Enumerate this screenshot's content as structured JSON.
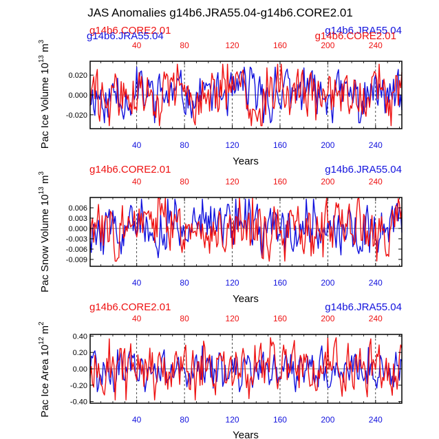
{
  "figure_title": "JAS Anomalies g14b6.JRA55.04-g14b6.CORE2.01",
  "colors": {
    "red_series": "#ee1111",
    "blue_series": "#1111dd",
    "axis": "#000000"
  },
  "chart_data": [
    {
      "type": "line",
      "title_left": "g14b6.CORE2.01",
      "title_right": "g14b6.JRA55.04",
      "title_left_overlap": "g14b6.JRA55.04",
      "title_right_overlap": "g14b6.CORE2.01",
      "ylabel_main": "Pac Ice Volume 10",
      "ylabel_sup": "13",
      "ylabel_unit": " m",
      "ylabel_unit_sup": "3",
      "xlabel": "Years",
      "xlim": [
        1,
        262
      ],
      "ylim": [
        -0.034,
        0.034
      ],
      "yticks": [
        0.02,
        0.0,
        -0.02
      ],
      "ytick_labels": [
        "0.020",
        "0.000",
        "-0.020"
      ],
      "xticks_top": [
        "40",
        "80",
        "120",
        "160",
        "200",
        "240"
      ],
      "xticks_bottom": [
        "40",
        "80",
        "120",
        "160",
        "200",
        "240"
      ],
      "xtick_values": [
        40,
        80,
        120,
        160,
        200,
        240
      ],
      "series": [
        {
          "name": "g14b6.JRA55.04",
          "color": "blue",
          "amplitude": 0.028,
          "seed": 11
        },
        {
          "name": "g14b6.CORE2.01",
          "color": "red",
          "amplitude": 0.031,
          "seed": 29
        }
      ]
    },
    {
      "type": "line",
      "title_left": "g14b6.CORE2.01",
      "title_right": "g14b6.JRA55.04",
      "ylabel_main": "Pac Snow Volume 10",
      "ylabel_sup": "13",
      "ylabel_unit": " m",
      "ylabel_unit_sup": "3",
      "xlabel": "Years",
      "xlim": [
        1,
        262
      ],
      "ylim": [
        -0.011,
        0.009
      ],
      "yticks": [
        0.006,
        0.003,
        0.0,
        -0.003,
        -0.006,
        -0.009
      ],
      "ytick_labels": [
        "0.006",
        "0.003",
        "0.000",
        "-0.003",
        "-0.006",
        "-0.009"
      ],
      "xticks_top": [
        "40",
        "80",
        "120",
        "160",
        "200",
        "240"
      ],
      "xticks_bottom": [
        "40",
        "80",
        "120",
        "160",
        "200",
        "240"
      ],
      "xtick_values": [
        40,
        80,
        120,
        160,
        200,
        240
      ],
      "series": [
        {
          "name": "g14b6.JRA55.04",
          "color": "blue",
          "amplitude": 0.0085,
          "seed": 47
        },
        {
          "name": "g14b6.CORE2.01",
          "color": "red",
          "amplitude": 0.0095,
          "seed": 83
        }
      ]
    },
    {
      "type": "line",
      "title_left": "g14b6.CORE2.01",
      "title_right": "g14b6.JRA55.04",
      "ylabel_main": "Pac Ice Area 10",
      "ylabel_sup": "12",
      "ylabel_unit": " m",
      "ylabel_unit_sup": "2",
      "xlabel": "Years",
      "xlim": [
        1,
        262
      ],
      "ylim": [
        -0.42,
        0.42
      ],
      "yticks": [
        0.4,
        0.2,
        0.0,
        -0.2,
        -0.4
      ],
      "ytick_labels": [
        "0.40",
        "0.20",
        "0.00",
        "-0.20",
        "-0.40"
      ],
      "xticks_top": [
        "40",
        "80",
        "120",
        "160",
        "200",
        "240"
      ],
      "xticks_bottom": [
        "40",
        "80",
        "120",
        "160",
        "200",
        "240"
      ],
      "xtick_values": [
        40,
        80,
        120,
        160,
        200,
        240
      ],
      "series": [
        {
          "name": "g14b6.JRA55.04",
          "color": "blue",
          "amplitude": 0.28,
          "seed": 101
        },
        {
          "name": "g14b6.CORE2.01",
          "color": "red",
          "amplitude": 0.38,
          "seed": 137
        }
      ]
    }
  ]
}
